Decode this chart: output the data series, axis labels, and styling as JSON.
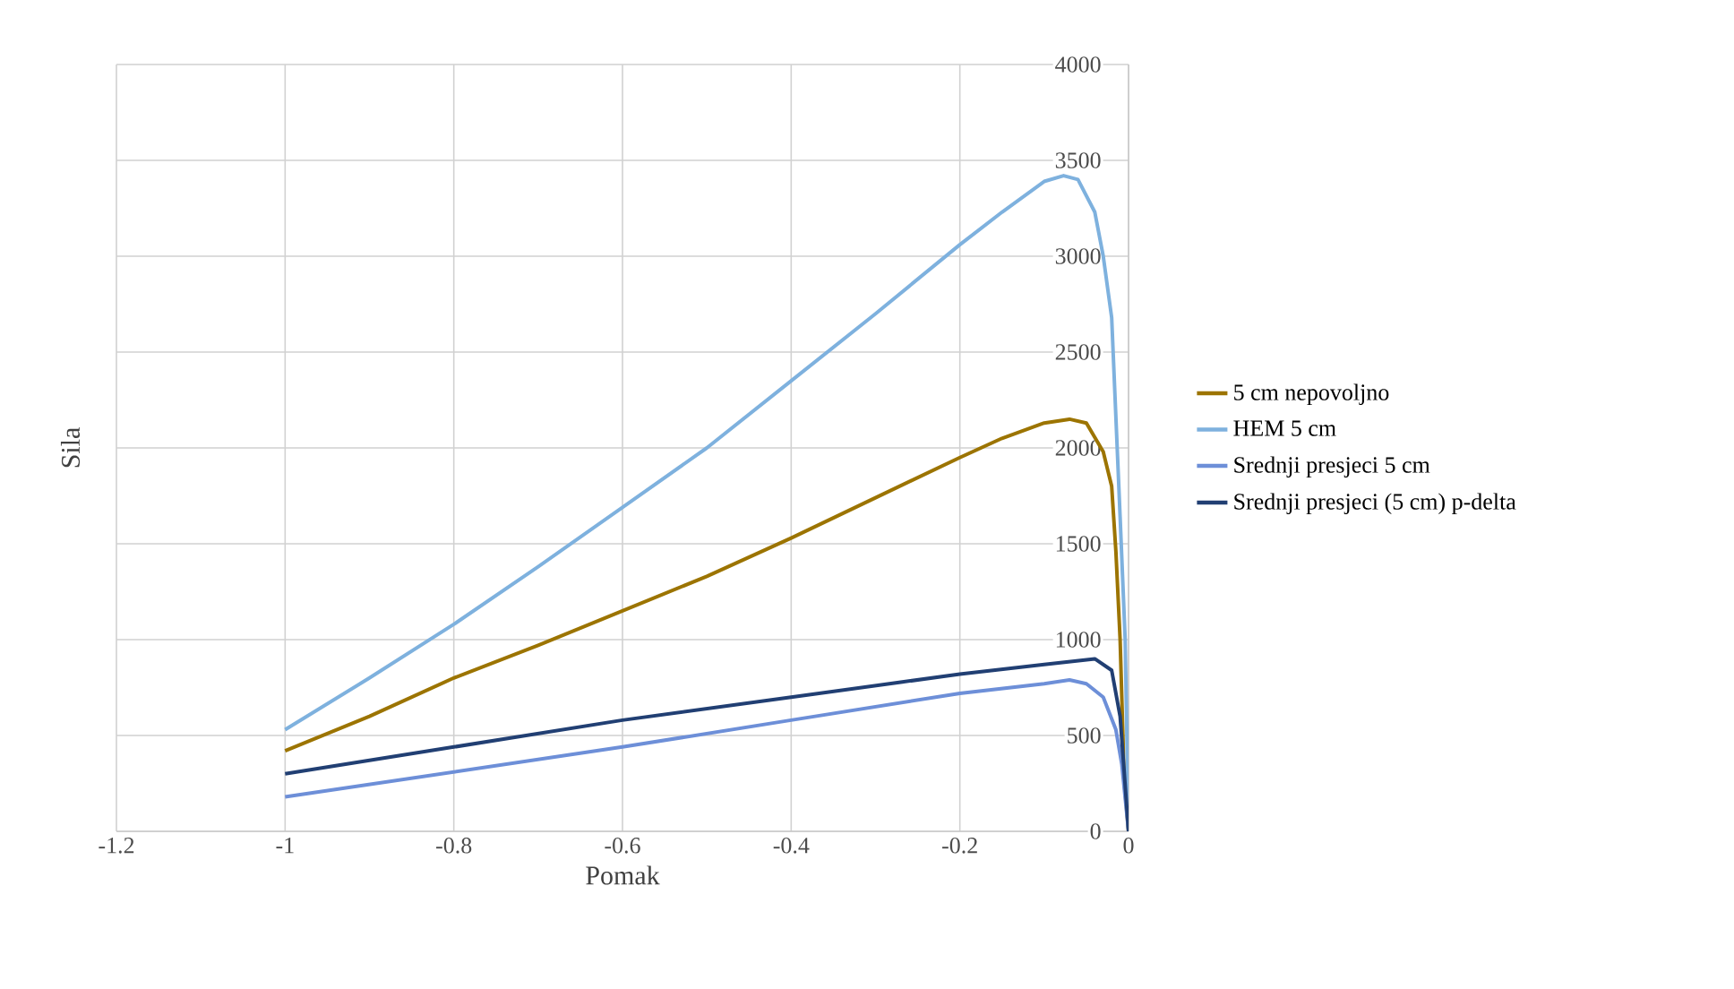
{
  "chart_data": {
    "type": "line",
    "xlabel": "Pomak",
    "ylabel": "Sila",
    "xlim": [
      -1.2,
      0
    ],
    "ylim": [
      0,
      4000
    ],
    "xticks": [
      -1.2,
      -1,
      -0.8,
      -0.6,
      -0.4,
      -0.2,
      0
    ],
    "yticks": [
      0,
      500,
      1000,
      1500,
      2000,
      2500,
      3000,
      3500,
      4000
    ],
    "grid": true,
    "legend": "right",
    "line_style": "solid",
    "marker": "none",
    "series": [
      {
        "name": "5 cm nepovoljno",
        "color": "#9c7400",
        "x": [
          -1,
          -0.9,
          -0.8,
          -0.7,
          -0.6,
          -0.5,
          -0.4,
          -0.3,
          -0.2,
          -0.15,
          -0.1,
          -0.07,
          -0.05,
          -0.03,
          -0.02,
          -0.015,
          -0.01,
          -0.005,
          0
        ],
        "values": [
          420,
          600,
          800,
          970,
          1150,
          1330,
          1530,
          1740,
          1950,
          2050,
          2130,
          2150,
          2130,
          1980,
          1800,
          1460,
          1000,
          250,
          0
        ]
      },
      {
        "name": "HEM 5 cm",
        "color": "#7eb1de",
        "x": [
          -1,
          -0.9,
          -0.8,
          -0.7,
          -0.6,
          -0.5,
          -0.4,
          -0.3,
          -0.2,
          -0.15,
          -0.1,
          -0.077,
          -0.06,
          -0.04,
          -0.03,
          -0.02,
          -0.01,
          -0.004,
          0
        ],
        "values": [
          530,
          800,
          1080,
          1380,
          1690,
          2000,
          2350,
          2700,
          3060,
          3230,
          3390,
          3420,
          3400,
          3230,
          3000,
          2680,
          1640,
          1000,
          0
        ]
      },
      {
        "name": "Srednji presjeci 5 cm",
        "color": "#6d8fd8",
        "x": [
          -1,
          -0.8,
          -0.6,
          -0.4,
          -0.2,
          -0.1,
          -0.07,
          -0.05,
          -0.03,
          -0.015,
          -0.008,
          0
        ],
        "values": [
          180,
          310,
          440,
          580,
          720,
          770,
          790,
          770,
          700,
          530,
          350,
          0
        ]
      },
      {
        "name": "Srednji presjeci (5 cm) p-delta",
        "color": "#213f73",
        "x": [
          -1,
          -0.8,
          -0.6,
          -0.4,
          -0.2,
          -0.1,
          -0.04,
          -0.02,
          -0.01,
          -0.005,
          0
        ],
        "values": [
          300,
          440,
          580,
          700,
          820,
          870,
          900,
          840,
          600,
          300,
          0
        ]
      }
    ]
  }
}
